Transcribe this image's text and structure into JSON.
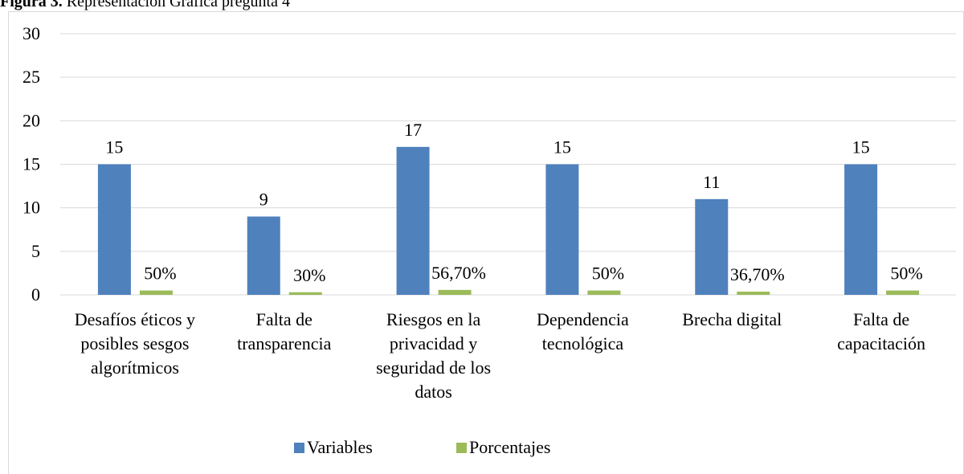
{
  "chart_data": {
    "type": "bar",
    "title_label": "Figura 3.",
    "title": "Representación Gráfica pregunta 4",
    "categories": [
      "Desafíos éticos y posibles sesgos algorítmicos",
      "Falta de transparencia",
      "Riesgos en la privacidad y seguridad de los datos",
      "Dependencia tecnológica",
      "Brecha digital",
      "Falta de capacitación"
    ],
    "series": [
      {
        "name": "Variables",
        "color": "#4f81bd",
        "values": [
          15,
          9,
          17,
          15,
          11,
          15
        ]
      },
      {
        "name": "Porcentajes",
        "color": "#9bbb59",
        "values": [
          0.5,
          0.3,
          0.567,
          0.5,
          0.367,
          0.5
        ],
        "value_labels": [
          "50%",
          "30%",
          "56,70%",
          "50%",
          "36,70%",
          "50%"
        ]
      }
    ],
    "ylim": [
      0,
      30
    ],
    "yticks": [
      0,
      5,
      10,
      15,
      20,
      25,
      30
    ],
    "grid": true,
    "legend": "bottom"
  }
}
